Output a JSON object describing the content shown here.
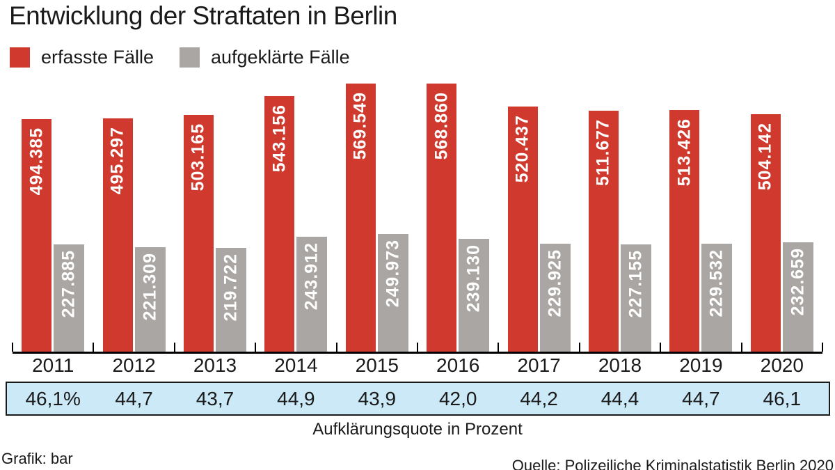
{
  "title": "Entwicklung der Straftaten in Berlin",
  "legend": {
    "items": [
      {
        "label": "erfasste Fälle",
        "color": "#d03a2e"
      },
      {
        "label": "aufgeklärte Fälle",
        "color": "#a9a6a4"
      }
    ]
  },
  "chart_data": {
    "type": "bar",
    "categories": [
      "2011",
      "2012",
      "2013",
      "2014",
      "2015",
      "2016",
      "2017",
      "2018",
      "2019",
      "2020"
    ],
    "series": [
      {
        "name": "erfasste Fälle",
        "color": "#d03a2e",
        "values": [
          494385,
          495297,
          503165,
          543156,
          569549,
          568860,
          520437,
          511677,
          513426,
          504142
        ],
        "labels": [
          "494.385",
          "495.297",
          "503.165",
          "543.156",
          "569.549",
          "568.860",
          "520.437",
          "511.677",
          "513.426",
          "504.142"
        ]
      },
      {
        "name": "aufgeklärte Fälle",
        "color": "#a9a6a4",
        "values": [
          227885,
          221309,
          219722,
          243912,
          249973,
          239130,
          229925,
          227155,
          229532,
          232659
        ],
        "labels": [
          "227.885",
          "221.309",
          "219.722",
          "243.912",
          "249.973",
          "239.130",
          "229.925",
          "227.155",
          "229.532",
          "232.659"
        ]
      }
    ],
    "quota_row": {
      "label": "Aufklärungsquote in Prozent",
      "values": [
        "46,1%",
        "44,7",
        "43,7",
        "44,9",
        "43,9",
        "42,0",
        "44,2",
        "44,4",
        "44,7",
        "46,1"
      ]
    },
    "ylim": [
      0,
      580000
    ],
    "grid": false,
    "legend_position": "top-left",
    "value_labels": "inside-bars-rotated"
  },
  "footer": {
    "credit": "Grafik: bar",
    "source": "Quelle: Polizeiliche Kriminalstatistik Berlin 2020"
  },
  "colors": {
    "accent_red": "#d03a2e",
    "gray": "#a9a6a4",
    "quota_bg": "#cbe9f7",
    "text": "#1a1a1a"
  }
}
